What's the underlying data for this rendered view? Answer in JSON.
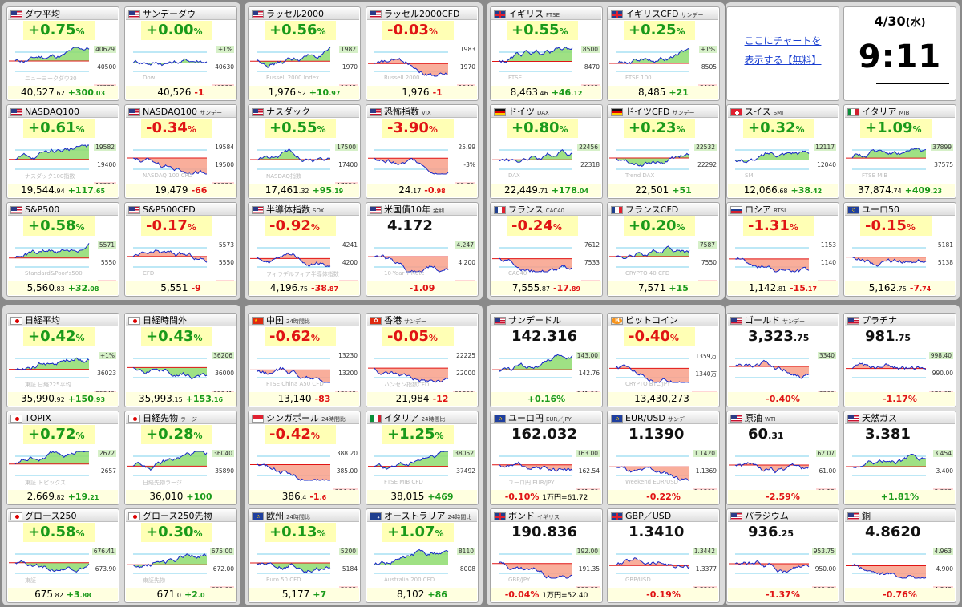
{
  "colors": {
    "up": "#1a9a1a",
    "down": "#e01414",
    "up_fill": "#8edc6e",
    "down_fill": "#f8a08a"
  },
  "promo": {
    "line1": "ここにチャートを",
    "line2": "表示する【無料】"
  },
  "clock": {
    "date": "4/30",
    "weekday": "(水)",
    "time": "9:11"
  },
  "cards": [
    {
      "id": "dow",
      "name": "ダウ平均",
      "sub": "",
      "flag": "us",
      "pct": "+0.75",
      "dir": "up",
      "watermark": "ニューヨークダウ30",
      "price_a": "40,527",
      "price_b": ".62",
      "chg": "+300",
      "chg_b": ".03",
      "ticks": [
        "40629",
        "40500",
        "40222"
      ]
    },
    {
      "id": "dow-sun",
      "name": "サンデーダウ",
      "sub": "",
      "flag": "us",
      "pct": "+0.00",
      "dir": "up",
      "watermark": "Dow",
      "price_a": "40,526",
      "price_b": "",
      "chg": "-1",
      "chg_b": "",
      "ticks": [
        "+1%",
        "40630",
        "40180"
      ]
    },
    {
      "id": "russell",
      "name": "ラッセル2000",
      "sub": "",
      "flag": "us",
      "pct": "+0.56",
      "dir": "up",
      "watermark": "Russell 2000 Index",
      "price_a": "1,976",
      "price_b": ".52",
      "chg": "+10",
      "chg_b": ".97",
      "ticks": [
        "1982",
        "1970",
        "1948"
      ]
    },
    {
      "id": "russell-cfd",
      "name": "ラッセル2000CFD",
      "sub": "",
      "flag": "us",
      "pct": "-0.03",
      "dir": "dn",
      "watermark": "Russell 2000",
      "price_a": "1,976",
      "price_b": "",
      "chg": "-1",
      "chg_b": "",
      "ticks": [
        "1983",
        "1970",
        "1945"
      ]
    },
    {
      "id": "ftse",
      "name": "イギリス",
      "sub": "FTSE",
      "flag": "uk",
      "pct": "+0.55",
      "dir": "up",
      "watermark": "FTSE",
      "price_a": "8,463",
      "price_b": ".46",
      "chg": "+46",
      "chg_b": ".12",
      "ticks": [
        "8500",
        "8470",
        "8403"
      ]
    },
    {
      "id": "ftse-cfd",
      "name": "イギリスCFD",
      "sub": "サンデー",
      "flag": "uk",
      "pct": "+0.25",
      "dir": "up",
      "watermark": "FTSE 100",
      "price_a": "8,485",
      "price_b": "",
      "chg": "+21",
      "chg_b": "",
      "ticks": [
        "+1%",
        "8505",
        "8403"
      ]
    },
    {
      "id": "nasdaq100",
      "name": "NASDAQ100",
      "sub": "",
      "flag": "us",
      "pct": "+0.61",
      "dir": "up",
      "watermark": "ナスダック100指数",
      "price_a": "19,544",
      "price_b": ".94",
      "chg": "+117",
      "chg_b": ".65",
      "ticks": [
        "19582",
        "19400",
        "19304"
      ]
    },
    {
      "id": "nasdaq100-sun",
      "name": "NASDAQ100",
      "sub": "サンデー",
      "flag": "us",
      "pct": "-0.34",
      "dir": "dn",
      "watermark": "NASDAQ 100 CFD",
      "price_a": "19,479",
      "price_b": "",
      "chg": "-66",
      "chg_b": "",
      "ticks": [
        "19584",
        "19500",
        "19276"
      ]
    },
    {
      "id": "nasdaq",
      "name": "ナスダック",
      "sub": "",
      "flag": "us",
      "pct": "+0.55",
      "dir": "up",
      "watermark": "NASDAQ指数",
      "price_a": "17,461",
      "price_b": ".32",
      "chg": "+95",
      "chg_b": ".19",
      "ticks": [
        "17500",
        "17400",
        "17256"
      ]
    },
    {
      "id": "vix",
      "name": "恐怖指数",
      "sub": "VIX",
      "flag": "us",
      "pct": "-3.90",
      "dir": "dn",
      "watermark": "",
      "price_a": "24",
      "price_b": ".17",
      "chg": "-0",
      "chg_b": ".98",
      "ticks": [
        "25.99",
        "-3%",
        "23.76"
      ]
    },
    {
      "id": "dax",
      "name": "ドイツ",
      "sub": "DAX",
      "flag": "de",
      "pct": "+0.80",
      "dir": "up",
      "watermark": "DAX",
      "price_a": "22,449",
      "price_b": ".71",
      "chg": "+178",
      "chg_b": ".04",
      "ticks": [
        "22456",
        "22318",
        ""
      ]
    },
    {
      "id": "dax-cfd",
      "name": "ドイツCFD",
      "sub": "サンデー",
      "flag": "de",
      "pct": "+0.23",
      "dir": "up",
      "watermark": "Trend DAX",
      "price_a": "22,501",
      "price_b": "",
      "chg": "+51",
      "chg_b": "",
      "ticks": [
        "22532",
        "22292",
        ""
      ]
    },
    {
      "id": "smi",
      "name": "スイス",
      "sub": "SMI",
      "flag": "ch",
      "pct": "+0.32",
      "dir": "up",
      "watermark": "SMI",
      "price_a": "12,066",
      "price_b": ".68",
      "chg": "+38",
      "chg_b": ".42",
      "ticks": [
        "12117",
        "12040",
        ""
      ]
    },
    {
      "id": "mib",
      "name": "イタリア",
      "sub": "MIB",
      "flag": "it",
      "pct": "+1.09",
      "dir": "up",
      "watermark": "FTSE MIB",
      "price_a": "37,874",
      "price_b": ".74",
      "chg": "+409",
      "chg_b": ".23",
      "ticks": [
        "37899",
        "37575",
        ""
      ]
    },
    {
      "id": "sp500",
      "name": "S&P500",
      "sub": "",
      "flag": "us",
      "pct": "+0.58",
      "dir": "up",
      "watermark": "Standard&Poor's500",
      "price_a": "5,560",
      "price_b": ".83",
      "chg": "+32",
      "chg_b": ".08",
      "ticks": [
        "5571",
        "5550",
        "5505"
      ]
    },
    {
      "id": "sp500-cfd",
      "name": "S&P500CFD",
      "sub": "",
      "flag": "us",
      "pct": "-0.17",
      "dir": "dn",
      "watermark": "CFD",
      "price_a": "5,551",
      "price_b": "",
      "chg": "-9",
      "chg_b": "",
      "ticks": [
        "5573",
        "5550",
        "5497"
      ]
    },
    {
      "id": "sox",
      "name": "半導体指数",
      "sub": "SOX",
      "flag": "us",
      "pct": "-0.92",
      "dir": "dn",
      "watermark": "フィラデルフィア半導体指数",
      "price_a": "4,196",
      "price_b": ".75",
      "chg": "-38",
      "chg_b": ".87",
      "ticks": [
        "4241",
        "4200",
        "4172"
      ]
    },
    {
      "id": "us10y",
      "name": "米国債10年",
      "sub": "金利",
      "flag": "us",
      "pct": "4.172",
      "dir": "blk",
      "watermark": "10-Year T-Note",
      "price_a": "",
      "price_b": "",
      "chg": "-1.09",
      "chg_b": "",
      "ticks": [
        "4.247",
        "4.200",
        "4.164"
      ]
    },
    {
      "id": "cac40",
      "name": "フランス",
      "sub": "CAC40",
      "flag": "fr",
      "pct": "-0.24",
      "dir": "dn",
      "watermark": "CAC40",
      "price_a": "7,555",
      "price_b": ".87",
      "chg": "-17",
      "chg_b": ".89",
      "ticks": [
        "7612",
        "7533",
        "7500"
      ]
    },
    {
      "id": "cac-cfd",
      "name": "フランスCFD",
      "sub": "",
      "flag": "fr",
      "pct": "+0.20",
      "dir": "up",
      "watermark": "CRYPTO 40 CFD",
      "price_a": "7,571",
      "price_b": "",
      "chg": "+15",
      "chg_b": "",
      "ticks": [
        "7587",
        "7550",
        "7533"
      ]
    },
    {
      "id": "rtsi",
      "name": "ロシア",
      "sub": "RTSI",
      "flag": "ru",
      "pct": "-1.31",
      "dir": "dn",
      "watermark": "",
      "price_a": "1,142",
      "price_b": ".81",
      "chg": "-15",
      "chg_b": ".17",
      "ticks": [
        "1153",
        "1140",
        "1132"
      ]
    },
    {
      "id": "euro50",
      "name": "ユーロ50",
      "sub": "",
      "flag": "eu",
      "pct": "-0.15",
      "dir": "dn",
      "watermark": "",
      "price_a": "5,162",
      "price_b": ".75",
      "chg": "-7",
      "chg_b": ".74",
      "ticks": [
        "5181",
        "5138",
        ""
      ]
    },
    {
      "id": "nikkei",
      "name": "日経平均",
      "sub": "",
      "flag": "jp",
      "pct": "+0.42",
      "dir": "up",
      "watermark": "東証 日経225平均",
      "price_a": "35,990",
      "price_b": ".92",
      "chg": "+150",
      "chg_b": ".93",
      "ticks": [
        "+1%",
        "36023",
        "35849"
      ]
    },
    {
      "id": "nikkei-after",
      "name": "日経時間外",
      "sub": "",
      "flag": "jp",
      "pct": "+0.43",
      "dir": "up",
      "watermark": "",
      "price_a": "35,993",
      "price_b": ".15",
      "chg": "+153",
      "chg_b": ".16",
      "ticks": [
        "36206",
        "36000",
        "35841"
      ]
    },
    {
      "id": "china",
      "name": "中国",
      "sub": "24時間比",
      "flag": "cn",
      "pct": "-0.62",
      "dir": "dn",
      "watermark": "FTSE China A50 CFD",
      "price_a": "13,140",
      "price_b": "",
      "chg": "-83",
      "chg_b": "",
      "ticks": [
        "13230",
        "13200",
        "13103"
      ]
    },
    {
      "id": "hk",
      "name": "香港",
      "sub": "サンデー",
      "flag": "hk",
      "pct": "-0.05",
      "dir": "dn",
      "watermark": "ハンセン指数CFD",
      "price_a": "21,984",
      "price_b": "",
      "chg": "-12",
      "chg_b": "",
      "ticks": [
        "22225",
        "22000",
        "21892"
      ]
    },
    {
      "id": "usdjpy-sun",
      "name": "サンデードル",
      "sub": "",
      "flag": "us",
      "pct": "142.316",
      "dir": "blk",
      "watermark": "",
      "price_a": "",
      "price_b": "",
      "chg": "+0.16%",
      "chg_b": "",
      "ticks": [
        "143.00",
        "142.76",
        "141.96"
      ]
    },
    {
      "id": "btc",
      "name": "ビットコイン",
      "sub": "",
      "flag": "btc",
      "pct": "-0.40",
      "dir": "dn",
      "watermark": "CRYPTO BTC/JPY",
      "price_a": "13,430,273",
      "price_b": "",
      "chg": "",
      "chg_b": "",
      "ticks": [
        "1359万",
        "1340万",
        "1333万"
      ]
    },
    {
      "id": "gold",
      "name": "ゴールド",
      "sub": "サンデー",
      "flag": "us",
      "pct": "3,323",
      "dir": "blk",
      "pct_b": ".75",
      "watermark": "",
      "price_a": "",
      "price_b": "",
      "chg": "-0.40%",
      "chg_b": "",
      "ticks": [
        "3340",
        "",
        "3299"
      ]
    },
    {
      "id": "platinum",
      "name": "プラチナ",
      "sub": "",
      "flag": "us",
      "pct": "981",
      "dir": "blk",
      "pct_b": ".75",
      "watermark": "",
      "price_a": "",
      "price_b": "",
      "chg": "-1.17%",
      "chg_b": "",
      "ticks": [
        "998.40",
        "990.00",
        "979.05"
      ]
    },
    {
      "id": "topix",
      "name": "TOPIX",
      "sub": "",
      "flag": "jp",
      "pct": "+0.72",
      "dir": "up",
      "watermark": "東証 トピックス",
      "price_a": "2,669",
      "price_b": ".82",
      "chg": "+19",
      "chg_b": ".21",
      "ticks": [
        "2672",
        "2657",
        ""
      ]
    },
    {
      "id": "nk-futures",
      "name": "日経先物",
      "sub": "ラージ",
      "flag": "jp",
      "pct": "+0.28",
      "dir": "up",
      "watermark": "日経先物ラージ",
      "price_a": "36,010",
      "price_b": "",
      "chg": "+100",
      "chg_b": "",
      "ticks": [
        "36040",
        "35890",
        ""
      ]
    },
    {
      "id": "sgx",
      "name": "シンガポール",
      "sub": "24時間比",
      "flag": "sg",
      "pct": "-0.42",
      "dir": "dn",
      "watermark": "",
      "price_a": "386",
      "price_b": ".4",
      "chg": "-1",
      "chg_b": ".6",
      "ticks": [
        "388.20",
        "385.00",
        "384.02"
      ]
    },
    {
      "id": "italy24",
      "name": "イタリア",
      "sub": "24時間比",
      "flag": "it",
      "pct": "+1.25",
      "dir": "up",
      "watermark": "FTSE MIB CFD",
      "price_a": "38,015",
      "price_b": "",
      "chg": "+469",
      "chg_b": "",
      "ticks": [
        "38052",
        "37492",
        ""
      ]
    },
    {
      "id": "eurjpy",
      "name": "ユーロ円",
      "sub": "EUR／JPY",
      "flag": "eu",
      "pct": "162.032",
      "dir": "blk",
      "watermark": "ユーロ円 EUR/JPY",
      "price_a": "",
      "price_b": "",
      "chg": "-0.10%",
      "chg_b": "1万円=61.72",
      "ticks": [
        "163.00",
        "162.54",
        "161.76"
      ]
    },
    {
      "id": "eurusd",
      "name": "EUR/USD",
      "sub": "サンデー",
      "flag": "eu",
      "pct": "1.1390",
      "dir": "blk",
      "watermark": "Weekend EUR/USD",
      "price_a": "",
      "price_b": "",
      "chg": "-0.22%",
      "chg_b": "",
      "ticks": [
        "1.1420",
        "1.1369",
        "1.1300"
      ]
    },
    {
      "id": "crude",
      "name": "原油",
      "sub": "WTI",
      "flag": "us",
      "pct": "60",
      "dir": "blk",
      "pct_b": ".31",
      "watermark": "",
      "price_a": "",
      "price_b": "",
      "chg": "-2.59%",
      "chg_b": "",
      "ticks": [
        "62.07",
        "61.00",
        "60.12"
      ]
    },
    {
      "id": "natgas",
      "name": "天然ガス",
      "sub": "",
      "flag": "us",
      "pct": "3.381",
      "dir": "blk",
      "watermark": "",
      "price_a": "",
      "price_b": "",
      "chg": "+1.81%",
      "chg_b": "",
      "ticks": [
        "3.454",
        "3.400",
        "3.308"
      ]
    },
    {
      "id": "growth250",
      "name": "グロース250",
      "sub": "",
      "flag": "jp",
      "pct": "+0.58",
      "dir": "up",
      "watermark": "東証",
      "price_a": "675",
      "price_b": ".82",
      "chg": "+3",
      "chg_b": ".88",
      "ticks": [
        "676.41",
        "673.90",
        ""
      ]
    },
    {
      "id": "growth250-fut",
      "name": "グロース250先物",
      "sub": "",
      "flag": "jp",
      "pct": "+0.30",
      "dir": "up",
      "watermark": "東証先物",
      "price_a": "671",
      "price_b": ".0",
      "chg": "+2",
      "chg_b": ".0",
      "ticks": [
        "675.00",
        "672.00",
        "669.00"
      ]
    },
    {
      "id": "europe",
      "name": "欧州",
      "sub": "24時間比",
      "flag": "eu",
      "pct": "+0.13",
      "dir": "up",
      "watermark": "Euro 50 CFD",
      "price_a": "5,177",
      "price_b": "",
      "chg": "+7",
      "chg_b": "",
      "ticks": [
        "5200",
        "5184",
        "5138"
      ]
    },
    {
      "id": "australia",
      "name": "オーストラリア",
      "sub": "24時間比",
      "flag": "au",
      "pct": "+1.07",
      "dir": "up",
      "watermark": "Australia 200 CFD",
      "price_a": "8,102",
      "price_b": "",
      "chg": "+86",
      "chg_b": "",
      "ticks": [
        "8110",
        "8008",
        ""
      ]
    },
    {
      "id": "bond",
      "name": "ボンド",
      "sub": "イギリス",
      "flag": "uk",
      "pct": "190.836",
      "dir": "blk",
      "watermark": "GBP/JPY",
      "price_a": "",
      "price_b": "",
      "chg": "-0.04%",
      "chg_b": "1万円=52.40",
      "ticks": [
        "192.00",
        "191.35",
        "190.38"
      ]
    },
    {
      "id": "gbpusd",
      "name": "GBP／USD",
      "sub": "",
      "flag": "uk",
      "pct": "1.3410",
      "dir": "blk",
      "watermark": "GBP/USD",
      "price_a": "",
      "price_b": "",
      "chg": "-0.19%",
      "chg_b": "",
      "ticks": [
        "1.3442",
        "1.3377",
        "1.3300"
      ]
    },
    {
      "id": "palladium",
      "name": "パラジウム",
      "sub": "",
      "flag": "us",
      "pct": "936",
      "dir": "blk",
      "pct_b": ".25",
      "watermark": "",
      "price_a": "",
      "price_b": "",
      "chg": "-1.37%",
      "chg_b": "",
      "ticks": [
        "953.75",
        "950.00",
        "933.00"
      ]
    },
    {
      "id": "copper",
      "name": "銅",
      "sub": "",
      "flag": "us",
      "pct": "4.8620",
      "dir": "blk",
      "watermark": "",
      "price_a": "",
      "price_b": "",
      "chg": "-0.76%",
      "chg_b": "",
      "ticks": [
        "4.963",
        "4.900",
        "4.843"
      ]
    }
  ]
}
